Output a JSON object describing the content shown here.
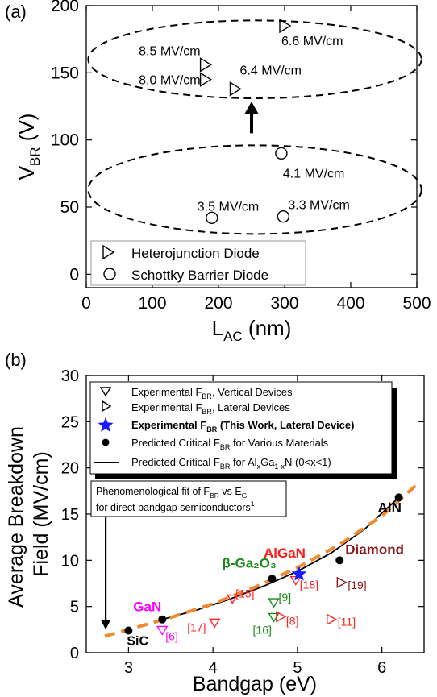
{
  "chart_data": [
    {
      "panel_label": "(a)",
      "type": "scatter",
      "xlabel": "L",
      "xlabel_sub": "AC",
      "xlabel_unit": " (nm)",
      "ylabel": "V",
      "ylabel_sub": "BR",
      "ylabel_unit": " (V)",
      "xlim": [
        0,
        500
      ],
      "ylim": [
        -10,
        200
      ],
      "xticks": [
        0,
        100,
        200,
        300,
        400,
        500
      ],
      "yticks": [
        0,
        50,
        100,
        150,
        200
      ],
      "legend": {
        "position": "bottom-left",
        "entries": [
          {
            "marker": "triangle-right",
            "label": "Heterojunction Diode"
          },
          {
            "marker": "circle",
            "label": "Schottky Barrier Diode"
          }
        ]
      },
      "series": [
        {
          "name": "Heterojunction Diode",
          "marker": "triangle-right",
          "points": [
            {
              "x": 180,
              "y": 156,
              "label": "8.5 MV/cm"
            },
            {
              "x": 180,
              "y": 145,
              "label": "8.0 MV/cm"
            },
            {
              "x": 225,
              "y": 138,
              "label": "6.4 MV/cm"
            },
            {
              "x": 300,
              "y": 185,
              "label": "6.6 MV/cm"
            }
          ]
        },
        {
          "name": "Schottky Barrier Diode",
          "marker": "circle",
          "points": [
            {
              "x": 295,
              "y": 90,
              "label": "4.1 MV/cm"
            },
            {
              "x": 190,
              "y": 42,
              "label": "3.5 MV/cm"
            },
            {
              "x": 298,
              "y": 43,
              "label": "3.3 MV/cm"
            }
          ]
        }
      ],
      "ellipses": [
        {
          "cx": 255,
          "cy": 160,
          "rx": 252,
          "ry": 29
        },
        {
          "cx": 255,
          "cy": 63,
          "rx": 252,
          "ry": 33
        }
      ],
      "arrow": {
        "x": 250,
        "from_y": 105,
        "to_y": 125
      }
    },
    {
      "panel_label": "(b)",
      "type": "scatter",
      "xlabel": "Bandgap (eV)",
      "ylabel": "Average Breakdown\nField (MV/cm)",
      "xlim": [
        2.5,
        6.5
      ],
      "ylim": [
        0,
        30
      ],
      "xticks": [
        3,
        4,
        5,
        6
      ],
      "yticks": [
        0,
        5,
        10,
        15,
        20,
        25,
        30
      ],
      "legend": {
        "position": "top-left",
        "entries": [
          {
            "marker": "triangle-down",
            "text": "Experimental F",
            "sub": "BR",
            "tail": ", Vertical Devices"
          },
          {
            "marker": "triangle-right",
            "text": "Experimental F",
            "sub": "BR",
            "tail": ", Lateral Devices"
          },
          {
            "marker": "star",
            "text": "Experimental F",
            "sub": "BR",
            "tail": " (This Work, Lateral Device)",
            "bold": true
          },
          {
            "marker": "dot",
            "text": "Predicted Critical F",
            "sub": "BR",
            "tail": " for Various Materials"
          },
          {
            "marker": "line",
            "text": "Predicted Critical F",
            "sub": "BR",
            "tail": " for Al",
            "sub2": "x",
            "tail2": "Ga",
            "sub3": "1-x",
            "tail3": "N (0<x<1)"
          }
        ]
      },
      "fit_note": {
        "line1": "Phenomenological fit of F",
        "line1_sub": "BR",
        "line1_tail": " vs E",
        "line1_sub2": "G",
        "line2": "for direct bandgap semiconductors",
        "line2_sup": "1"
      },
      "predicted_materials": [
        {
          "name": "SiC",
          "x": 3.0,
          "y": 2.4,
          "color": "#000000"
        },
        {
          "name": "GaN",
          "x": 3.4,
          "y": 3.6,
          "color": "#ff00ff"
        },
        {
          "name": "β-Ga₂O₃",
          "x": 4.7,
          "y": 8.0,
          "color": "#1a8a1a"
        },
        {
          "name": "Diamond",
          "x": 5.5,
          "y": 10.0,
          "color": "#8b1a1a"
        },
        {
          "name": "AlN",
          "x": 6.2,
          "y": 16.8,
          "color": "#000000"
        }
      ],
      "algan_label": {
        "text": "AlGaN",
        "color": "#ff1a1a"
      },
      "experimental_vertical": [
        {
          "x": 3.4,
          "y": 2.4,
          "ref": "[6]",
          "color": "#ff00ff"
        },
        {
          "x": 4.02,
          "y": 3.2,
          "ref": "[17]",
          "color": "#ff2222"
        },
        {
          "x": 4.23,
          "y": 5.8,
          "ref": "[15]",
          "color": "#ff2222"
        },
        {
          "x": 4.72,
          "y": 5.4,
          "ref": "[9]",
          "color": "#1a8a1a"
        },
        {
          "x": 4.72,
          "y": 3.8,
          "ref": "[16]",
          "color": "#1a8a1a"
        },
        {
          "x": 4.98,
          "y": 7.8,
          "ref": "[18]",
          "color": "#ff2222"
        }
      ],
      "experimental_lateral": [
        {
          "x": 4.8,
          "y": 3.9,
          "ref": "[8]",
          "color": "#ff2222"
        },
        {
          "x": 5.4,
          "y": 3.6,
          "ref": "[11]",
          "color": "#ff2222"
        },
        {
          "x": 5.52,
          "y": 7.6,
          "ref": "[19]",
          "color": "#8b1a1a"
        }
      ],
      "this_work": {
        "x": 5.02,
        "y": 8.5,
        "color": "#1a1aff"
      },
      "fit_curve": {
        "color": "#f08a30",
        "x": [
          2.72,
          3.0,
          3.5,
          4.0,
          4.5,
          5.0,
          5.5,
          6.0,
          6.45
        ],
        "y": [
          1.8,
          2.5,
          3.8,
          5.3,
          7.1,
          9.2,
          11.7,
          14.8,
          18.5
        ]
      },
      "algan_curve": {
        "color": "#000000",
        "x": [
          3.4,
          3.8,
          4.2,
          4.6,
          5.0,
          5.4,
          5.8,
          6.2
        ],
        "y": [
          3.6,
          4.6,
          5.8,
          7.2,
          8.8,
          10.8,
          13.4,
          16.8
        ]
      },
      "arrow": {
        "x": 2.73,
        "from_y": 16.6,
        "to_y": 2.5
      }
    }
  ]
}
